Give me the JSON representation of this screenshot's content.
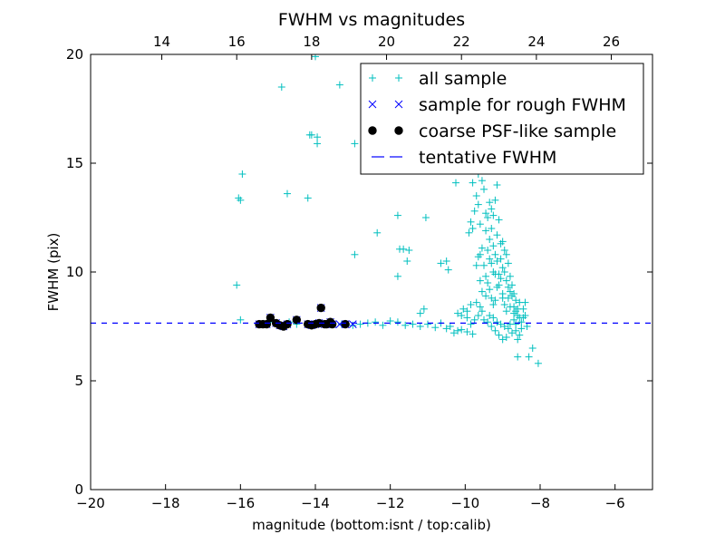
{
  "chart_data": {
    "type": "scatter",
    "title": "FWHM vs magnitudes",
    "xlabel": "magnitude (bottom:isnt / top:calib)",
    "ylabel": "FWHM (pix)",
    "xlim": [
      -20,
      -5
    ],
    "ylim": [
      0,
      20
    ],
    "x_ticks": [
      -20,
      -18,
      -16,
      -14,
      -12,
      -10,
      -8,
      -6
    ],
    "x_tick_labels": [
      "−20",
      "−18",
      "−16",
      "−14",
      "−12",
      "−10",
      "−8",
      "−6"
    ],
    "y_ticks": [
      0,
      5,
      10,
      15,
      20
    ],
    "y_tick_labels": [
      "0",
      "5",
      "10",
      "15",
      "20"
    ],
    "top_axis": {
      "ticks": [
        14,
        16,
        18,
        20,
        22,
        24,
        26
      ],
      "tick_labels": [
        "14",
        "16",
        "18",
        "20",
        "22",
        "24",
        "26"
      ],
      "offset": 32.1
    },
    "grid": false,
    "legend_position": "top-right",
    "colors": {
      "all": "#00bfbf",
      "rough": "#0000ff",
      "coarse": "#000000",
      "tentative": "#0000ff"
    },
    "series": [
      {
        "name": "all sample",
        "marker": "plus",
        "color": "#00bfbf",
        "points": [
          [
            -14.0,
            19.9
          ],
          [
            -14.9,
            18.5
          ],
          [
            -13.35,
            18.6
          ],
          [
            -14.15,
            16.3
          ],
          [
            -14.1,
            16.3
          ],
          [
            -13.95,
            16.2
          ],
          [
            -13.95,
            15.9
          ],
          [
            -12.95,
            15.9
          ],
          [
            -15.95,
            14.5
          ],
          [
            -16.0,
            13.3
          ],
          [
            -16.05,
            13.4
          ],
          [
            -14.75,
            13.6
          ],
          [
            -14.2,
            13.4
          ],
          [
            -16.1,
            9.4
          ],
          [
            -16.0,
            7.8
          ],
          [
            -12.95,
            10.8
          ],
          [
            -12.35,
            11.8
          ],
          [
            -11.8,
            12.6
          ],
          [
            -11.65,
            11.05
          ],
          [
            -11.75,
            11.05
          ],
          [
            -11.5,
            11.0
          ],
          [
            -11.55,
            10.5
          ],
          [
            -11.8,
            9.8
          ],
          [
            -11.05,
            12.5
          ],
          [
            -10.25,
            14.1
          ],
          [
            -10.5,
            10.5
          ],
          [
            -10.65,
            10.4
          ],
          [
            -10.45,
            10.1
          ],
          [
            -11.1,
            8.3
          ],
          [
            -11.2,
            8.1
          ],
          [
            -12.8,
            7.6
          ],
          [
            -12.6,
            7.65
          ],
          [
            -12.4,
            7.7
          ],
          [
            -12.2,
            7.55
          ],
          [
            -12.0,
            7.75
          ],
          [
            -11.8,
            7.7
          ],
          [
            -11.6,
            7.55
          ],
          [
            -11.4,
            7.6
          ],
          [
            -11.2,
            7.5
          ],
          [
            -11.0,
            7.6
          ],
          [
            -10.8,
            7.45
          ],
          [
            -10.65,
            7.65
          ],
          [
            -10.5,
            7.4
          ],
          [
            -10.4,
            7.5
          ],
          [
            -10.3,
            7.2
          ],
          [
            -10.2,
            7.3
          ],
          [
            -10.1,
            7.35
          ],
          [
            -9.95,
            7.25
          ],
          [
            -9.8,
            7.15
          ],
          [
            -13.6,
            7.65
          ],
          [
            -13.3,
            7.6
          ],
          [
            -13.0,
            7.55
          ],
          [
            -14.5,
            7.6
          ],
          [
            -15.2,
            7.7
          ],
          [
            -14.7,
            7.7
          ],
          [
            -10.2,
            8.1
          ],
          [
            -10.1,
            8.0
          ],
          [
            -10.05,
            8.3
          ],
          [
            -9.95,
            8.2
          ],
          [
            -9.85,
            8.5
          ],
          [
            -9.7,
            8.6
          ],
          [
            -9.6,
            8.4
          ],
          [
            -9.9,
            11.8
          ],
          [
            -9.85,
            12.3
          ],
          [
            -9.8,
            12.0
          ],
          [
            -9.75,
            12.8
          ],
          [
            -9.7,
            13.5
          ],
          [
            -9.65,
            13.1
          ],
          [
            -9.6,
            12.2
          ],
          [
            -9.9,
            14.9
          ],
          [
            -9.8,
            14.1
          ],
          [
            -9.65,
            14.5
          ],
          [
            -9.55,
            14.2
          ],
          [
            -9.5,
            13.8
          ],
          [
            -9.45,
            12.7
          ],
          [
            -9.4,
            12.5
          ],
          [
            -9.35,
            13.2
          ],
          [
            -9.3,
            12.0
          ],
          [
            -9.25,
            11.2
          ],
          [
            -9.2,
            10.8
          ],
          [
            -9.15,
            11.7
          ],
          [
            -9.1,
            12.4
          ],
          [
            -9.05,
            11.3
          ],
          [
            -9.0,
            10.2
          ],
          [
            -8.95,
            10.0
          ],
          [
            -8.9,
            9.6
          ],
          [
            -8.85,
            9.3
          ],
          [
            -8.8,
            9.1
          ],
          [
            -8.75,
            8.9
          ],
          [
            -8.7,
            8.4
          ],
          [
            -8.65,
            8.2
          ],
          [
            -8.6,
            8.0
          ],
          [
            -8.55,
            7.9
          ],
          [
            -9.5,
            10.3
          ],
          [
            -9.45,
            9.8
          ],
          [
            -9.4,
            9.5
          ],
          [
            -9.35,
            9.2
          ],
          [
            -9.3,
            8.8
          ],
          [
            -9.25,
            8.5
          ],
          [
            -9.2,
            8.7
          ],
          [
            -9.15,
            9.3
          ],
          [
            -9.1,
            9.9
          ],
          [
            -9.05,
            10.6
          ],
          [
            -9.0,
            11.4
          ],
          [
            -8.95,
            11.0
          ],
          [
            -8.9,
            10.8
          ],
          [
            -8.85,
            10.4
          ],
          [
            -8.8,
            9.8
          ],
          [
            -8.75,
            9.4
          ],
          [
            -8.7,
            9.0
          ],
          [
            -8.65,
            8.7
          ],
          [
            -8.6,
            8.3
          ],
          [
            -8.55,
            8.6
          ],
          [
            -9.6,
            9.6
          ],
          [
            -9.55,
            9.1
          ],
          [
            -9.45,
            8.9
          ],
          [
            -9.35,
            8.0
          ],
          [
            -9.25,
            7.9
          ],
          [
            -9.15,
            7.7
          ],
          [
            -9.05,
            7.6
          ],
          [
            -8.95,
            7.5
          ],
          [
            -8.85,
            7.4
          ],
          [
            -8.75,
            7.2
          ],
          [
            -9.5,
            7.8
          ],
          [
            -9.4,
            7.7
          ],
          [
            -9.3,
            7.5
          ],
          [
            -9.2,
            7.3
          ],
          [
            -9.1,
            7.1
          ],
          [
            -9.0,
            6.9
          ],
          [
            -8.9,
            7.0
          ],
          [
            -8.8,
            7.6
          ],
          [
            -8.7,
            7.8
          ],
          [
            -8.65,
            7.3
          ],
          [
            -9.55,
            8.2
          ],
          [
            -9.65,
            8.0
          ],
          [
            -9.75,
            7.8
          ],
          [
            -9.85,
            7.6
          ],
          [
            -9.95,
            7.9
          ],
          [
            -9.3,
            10.4
          ],
          [
            -9.2,
            9.9
          ],
          [
            -9.1,
            9.4
          ],
          [
            -9.0,
            8.8
          ],
          [
            -8.9,
            8.2
          ],
          [
            -9.4,
            11.0
          ],
          [
            -9.35,
            10.6
          ],
          [
            -9.25,
            10.0
          ],
          [
            -9.15,
            10.5
          ],
          [
            -9.05,
            9.7
          ],
          [
            -9.0,
            9.0
          ],
          [
            -8.95,
            8.5
          ],
          [
            -8.85,
            8.8
          ],
          [
            -8.8,
            8.4
          ],
          [
            -8.7,
            8.1
          ],
          [
            -9.15,
            14.0
          ],
          [
            -9.2,
            13.3
          ],
          [
            -9.25,
            12.6
          ],
          [
            -9.3,
            12.9
          ],
          [
            -9.35,
            11.5
          ],
          [
            -9.45,
            11.9
          ],
          [
            -9.55,
            11.1
          ],
          [
            -9.6,
            10.8
          ],
          [
            -9.65,
            10.7
          ],
          [
            -9.7,
            10.3
          ],
          [
            -8.55,
            7.1
          ],
          [
            -8.5,
            7.4
          ],
          [
            -8.5,
            7.7
          ],
          [
            -8.45,
            7.9
          ],
          [
            -8.45,
            8.3
          ],
          [
            -8.4,
            8.6
          ],
          [
            -8.4,
            8.0
          ],
          [
            -8.35,
            7.5
          ],
          [
            -8.6,
            6.9
          ],
          [
            -8.65,
            7.6
          ],
          [
            -8.6,
            6.1
          ],
          [
            -8.3,
            6.1
          ],
          [
            -8.2,
            6.5
          ],
          [
            -8.05,
            5.8
          ]
        ]
      },
      {
        "name": "sample for rough FWHM",
        "marker": "x",
        "color": "#0000ff",
        "points": [
          [
            -15.5,
            7.6
          ],
          [
            -15.4,
            7.6
          ],
          [
            -15.3,
            7.6
          ],
          [
            -15.2,
            7.9
          ],
          [
            -15.05,
            7.65
          ],
          [
            -14.95,
            7.55
          ],
          [
            -14.85,
            7.5
          ],
          [
            -14.75,
            7.6
          ],
          [
            -14.5,
            7.8
          ],
          [
            -14.2,
            7.6
          ],
          [
            -14.1,
            7.55
          ],
          [
            -14.0,
            7.6
          ],
          [
            -13.9,
            7.65
          ],
          [
            -13.85,
            8.35
          ],
          [
            -13.75,
            7.6
          ],
          [
            -13.7,
            7.6
          ],
          [
            -13.6,
            7.7
          ],
          [
            -13.55,
            7.6
          ],
          [
            -13.2,
            7.6
          ],
          [
            -13.35,
            7.6
          ],
          [
            -13.0,
            7.6
          ]
        ]
      },
      {
        "name": "coarse PSF-like sample",
        "marker": "circle",
        "color": "#000000",
        "points": [
          [
            -15.5,
            7.6
          ],
          [
            -15.4,
            7.6
          ],
          [
            -15.3,
            7.6
          ],
          [
            -15.2,
            7.9
          ],
          [
            -15.05,
            7.65
          ],
          [
            -14.95,
            7.55
          ],
          [
            -14.85,
            7.5
          ],
          [
            -14.75,
            7.6
          ],
          [
            -14.5,
            7.8
          ],
          [
            -14.2,
            7.6
          ],
          [
            -14.1,
            7.55
          ],
          [
            -14.0,
            7.6
          ],
          [
            -13.9,
            7.65
          ],
          [
            -13.85,
            8.35
          ],
          [
            -13.75,
            7.6
          ],
          [
            -13.7,
            7.6
          ],
          [
            -13.6,
            7.7
          ],
          [
            -13.55,
            7.6
          ],
          [
            -13.2,
            7.6
          ]
        ]
      },
      {
        "name": "tentative FWHM",
        "marker": "dashed-line",
        "color": "#0000ff",
        "y": 7.65
      }
    ]
  }
}
